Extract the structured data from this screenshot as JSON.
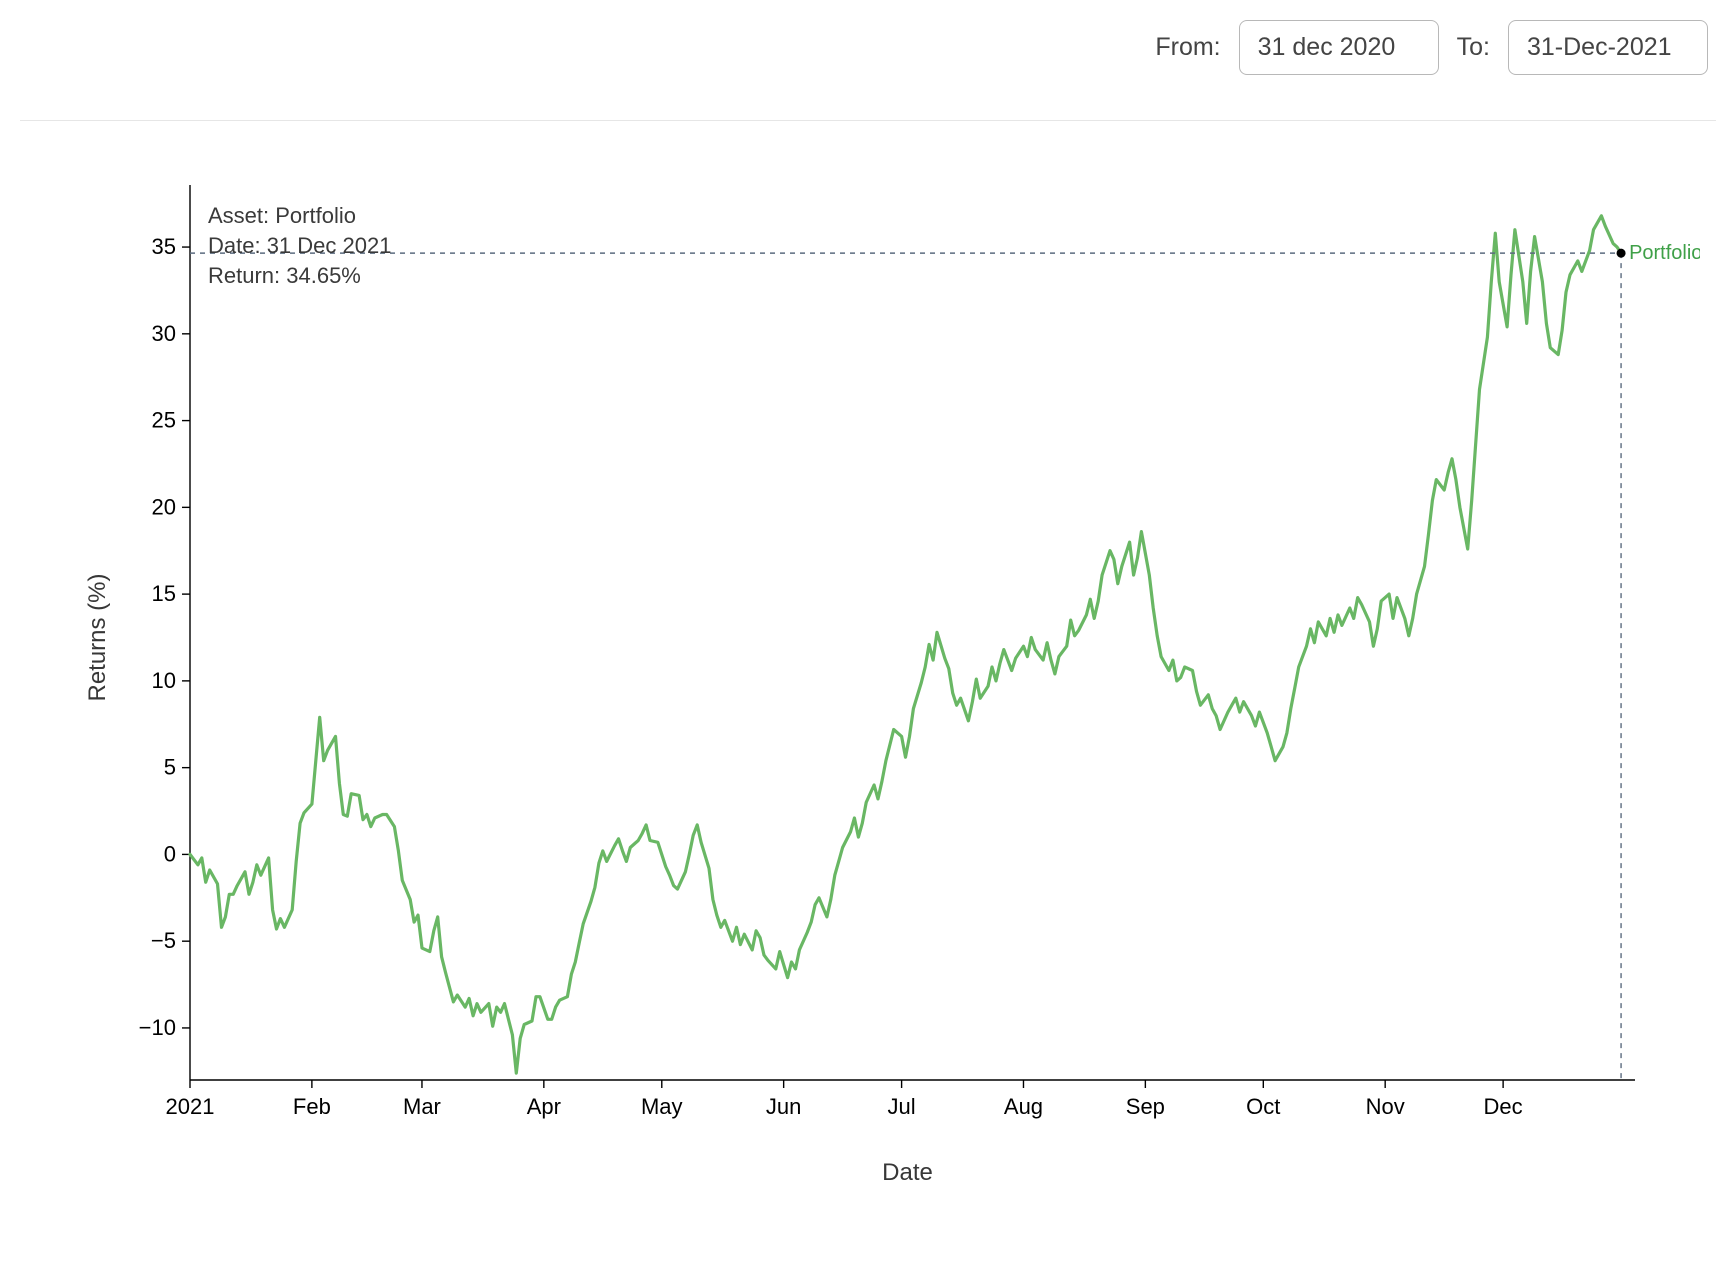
{
  "toolbar": {
    "from_label": "From:",
    "from_value": "31 dec 2020",
    "to_label": "To:",
    "to_value": "31-Dec-2021"
  },
  "tooltip": {
    "asset_line": "Asset: Portfolio",
    "date_line": "Date: 31 Dec 2021",
    "return_line": "Return: 34.65%"
  },
  "chart": {
    "type": "line",
    "x_axis_label": "Date",
    "y_axis_label": "Returns (%)",
    "series_label": "Portfolio",
    "line_color": "#69b764",
    "line_width": 3.2,
    "series_label_color": "#3fa048",
    "axis_color": "#000000",
    "tick_color": "#000000",
    "tick_fontsize": 22,
    "axis_label_fontsize": 24,
    "axis_label_color": "#373737",
    "tooltip_fontsize": 22,
    "tooltip_color": "#3a3a3a",
    "crosshair_color": "#5b6b7f",
    "crosshair_dash": "5,5",
    "marker_fill": "#000000",
    "marker_radius": 4.5,
    "background_color": "#ffffff",
    "x_range": [
      0,
      365
    ],
    "y_range": [
      -13,
      38
    ],
    "y_ticks": [
      -10,
      -5,
      0,
      5,
      10,
      15,
      20,
      25,
      30,
      35
    ],
    "x_ticks": [
      {
        "pos": 0,
        "label": "2021"
      },
      {
        "pos": 31,
        "label": "Feb"
      },
      {
        "pos": 59,
        "label": "Mar"
      },
      {
        "pos": 90,
        "label": "Apr"
      },
      {
        "pos": 120,
        "label": "May"
      },
      {
        "pos": 151,
        "label": "Jun"
      },
      {
        "pos": 181,
        "label": "Jul"
      },
      {
        "pos": 212,
        "label": "Aug"
      },
      {
        "pos": 243,
        "label": "Sep"
      },
      {
        "pos": 273,
        "label": "Oct"
      },
      {
        "pos": 304,
        "label": "Nov"
      },
      {
        "pos": 334,
        "label": "Dec"
      }
    ],
    "cursor_x": 364,
    "cursor_y": 34.65,
    "series": [
      [
        0,
        0
      ],
      [
        2,
        -0.6
      ],
      [
        3,
        -0.2
      ],
      [
        4,
        -1.6
      ],
      [
        5,
        -0.9
      ],
      [
        7,
        -1.7
      ],
      [
        8,
        -4.2
      ],
      [
        9,
        -3.6
      ],
      [
        10,
        -2.3
      ],
      [
        11,
        -2.3
      ],
      [
        12,
        -1.8
      ],
      [
        14,
        -1.0
      ],
      [
        15,
        -2.3
      ],
      [
        16,
        -1.6
      ],
      [
        17,
        -0.6
      ],
      [
        18,
        -1.2
      ],
      [
        20,
        -0.2
      ],
      [
        21,
        -3.2
      ],
      [
        22,
        -4.3
      ],
      [
        23,
        -3.7
      ],
      [
        24,
        -4.2
      ],
      [
        26,
        -3.2
      ],
      [
        27,
        -0.4
      ],
      [
        28,
        1.8
      ],
      [
        29,
        2.4
      ],
      [
        31,
        2.9
      ],
      [
        32,
        5.4
      ],
      [
        33,
        7.9
      ],
      [
        34,
        5.4
      ],
      [
        35,
        6.0
      ],
      [
        37,
        6.8
      ],
      [
        38,
        4.1
      ],
      [
        39,
        2.3
      ],
      [
        40,
        2.2
      ],
      [
        41,
        3.5
      ],
      [
        43,
        3.4
      ],
      [
        44,
        2.0
      ],
      [
        45,
        2.3
      ],
      [
        46,
        1.6
      ],
      [
        47,
        2.1
      ],
      [
        49,
        2.3
      ],
      [
        50,
        2.3
      ],
      [
        52,
        1.6
      ],
      [
        53,
        0.2
      ],
      [
        54,
        -1.5
      ],
      [
        56,
        -2.6
      ],
      [
        57,
        -3.9
      ],
      [
        58,
        -3.5
      ],
      [
        59,
        -5.4
      ],
      [
        61,
        -5.6
      ],
      [
        62,
        -4.4
      ],
      [
        63,
        -3.6
      ],
      [
        64,
        -5.9
      ],
      [
        65,
        -6.8
      ],
      [
        67,
        -8.5
      ],
      [
        68,
        -8.1
      ],
      [
        70,
        -8.8
      ],
      [
        71,
        -8.3
      ],
      [
        72,
        -9.3
      ],
      [
        73,
        -8.6
      ],
      [
        74,
        -9.1
      ],
      [
        76,
        -8.6
      ],
      [
        77,
        -9.9
      ],
      [
        78,
        -8.8
      ],
      [
        79,
        -9.1
      ],
      [
        80,
        -8.6
      ],
      [
        82,
        -10.4
      ],
      [
        83,
        -12.6
      ],
      [
        84,
        -10.6
      ],
      [
        85,
        -9.8
      ],
      [
        87,
        -9.6
      ],
      [
        88,
        -8.2
      ],
      [
        89,
        -8.2
      ],
      [
        91,
        -9.5
      ],
      [
        92,
        -9.5
      ],
      [
        93,
        -8.8
      ],
      [
        94,
        -8.4
      ],
      [
        96,
        -8.2
      ],
      [
        97,
        -6.9
      ],
      [
        98,
        -6.2
      ],
      [
        99,
        -5.1
      ],
      [
        100,
        -4.0
      ],
      [
        102,
        -2.7
      ],
      [
        103,
        -1.9
      ],
      [
        104,
        -0.5
      ],
      [
        105,
        0.2
      ],
      [
        106,
        -0.4
      ],
      [
        108,
        0.5
      ],
      [
        109,
        0.9
      ],
      [
        110,
        0.2
      ],
      [
        111,
        -0.4
      ],
      [
        112,
        0.4
      ],
      [
        114,
        0.8
      ],
      [
        115,
        1.2
      ],
      [
        116,
        1.7
      ],
      [
        117,
        0.8
      ],
      [
        119,
        0.7
      ],
      [
        121,
        -0.7
      ],
      [
        122,
        -1.2
      ],
      [
        123,
        -1.8
      ],
      [
        124,
        -2.0
      ],
      [
        126,
        -1.0
      ],
      [
        127,
        0.0
      ],
      [
        128,
        1.1
      ],
      [
        129,
        1.7
      ],
      [
        130,
        0.7
      ],
      [
        132,
        -0.8
      ],
      [
        133,
        -2.6
      ],
      [
        134,
        -3.5
      ],
      [
        135,
        -4.2
      ],
      [
        136,
        -3.8
      ],
      [
        138,
        -5.0
      ],
      [
        139,
        -4.2
      ],
      [
        140,
        -5.2
      ],
      [
        141,
        -4.6
      ],
      [
        143,
        -5.5
      ],
      [
        144,
        -4.4
      ],
      [
        145,
        -4.8
      ],
      [
        146,
        -5.8
      ],
      [
        147,
        -6.1
      ],
      [
        149,
        -6.6
      ],
      [
        150,
        -5.6
      ],
      [
        152,
        -7.1
      ],
      [
        153,
        -6.2
      ],
      [
        154,
        -6.6
      ],
      [
        155,
        -5.5
      ],
      [
        157,
        -4.5
      ],
      [
        158,
        -3.9
      ],
      [
        159,
        -2.9
      ],
      [
        160,
        -2.5
      ],
      [
        162,
        -3.6
      ],
      [
        163,
        -2.6
      ],
      [
        164,
        -1.2
      ],
      [
        165,
        -0.4
      ],
      [
        166,
        0.4
      ],
      [
        168,
        1.3
      ],
      [
        169,
        2.1
      ],
      [
        170,
        1.0
      ],
      [
        171,
        1.8
      ],
      [
        172,
        3.0
      ],
      [
        174,
        4.0
      ],
      [
        175,
        3.2
      ],
      [
        176,
        4.2
      ],
      [
        177,
        5.4
      ],
      [
        179,
        7.2
      ],
      [
        181,
        6.8
      ],
      [
        182,
        5.6
      ],
      [
        183,
        6.8
      ],
      [
        184,
        8.4
      ],
      [
        186,
        9.9
      ],
      [
        187,
        10.8
      ],
      [
        188,
        12.1
      ],
      [
        189,
        11.2
      ],
      [
        190,
        12.8
      ],
      [
        192,
        11.3
      ],
      [
        193,
        10.7
      ],
      [
        194,
        9.3
      ],
      [
        195,
        8.6
      ],
      [
        196,
        9.0
      ],
      [
        198,
        7.7
      ],
      [
        199,
        8.8
      ],
      [
        200,
        10.1
      ],
      [
        201,
        9.0
      ],
      [
        203,
        9.7
      ],
      [
        204,
        10.8
      ],
      [
        205,
        10.0
      ],
      [
        206,
        11.0
      ],
      [
        207,
        11.8
      ],
      [
        209,
        10.6
      ],
      [
        210,
        11.3
      ],
      [
        212,
        12.0
      ],
      [
        213,
        11.4
      ],
      [
        214,
        12.5
      ],
      [
        215,
        11.8
      ],
      [
        217,
        11.2
      ],
      [
        218,
        12.2
      ],
      [
        219,
        11.2
      ],
      [
        220,
        10.4
      ],
      [
        221,
        11.4
      ],
      [
        223,
        12.0
      ],
      [
        224,
        13.5
      ],
      [
        225,
        12.6
      ],
      [
        226,
        12.9
      ],
      [
        228,
        13.8
      ],
      [
        229,
        14.7
      ],
      [
        230,
        13.6
      ],
      [
        231,
        14.6
      ],
      [
        232,
        16.1
      ],
      [
        234,
        17.5
      ],
      [
        235,
        17.0
      ],
      [
        236,
        15.6
      ],
      [
        237,
        16.6
      ],
      [
        239,
        18.0
      ],
      [
        240,
        16.1
      ],
      [
        241,
        17.1
      ],
      [
        242,
        18.6
      ],
      [
        244,
        16.1
      ],
      [
        245,
        14.2
      ],
      [
        246,
        12.6
      ],
      [
        247,
        11.4
      ],
      [
        249,
        10.6
      ],
      [
        250,
        11.2
      ],
      [
        251,
        10.0
      ],
      [
        252,
        10.2
      ],
      [
        253,
        10.8
      ],
      [
        255,
        10.6
      ],
      [
        256,
        9.4
      ],
      [
        257,
        8.6
      ],
      [
        259,
        9.2
      ],
      [
        260,
        8.4
      ],
      [
        261,
        8.0
      ],
      [
        262,
        7.2
      ],
      [
        264,
        8.2
      ],
      [
        265,
        8.6
      ],
      [
        266,
        9.0
      ],
      [
        267,
        8.2
      ],
      [
        268,
        8.8
      ],
      [
        270,
        8.0
      ],
      [
        271,
        7.4
      ],
      [
        272,
        8.2
      ],
      [
        274,
        7.0
      ],
      [
        275,
        6.2
      ],
      [
        276,
        5.4
      ],
      [
        278,
        6.2
      ],
      [
        279,
        7.0
      ],
      [
        280,
        8.4
      ],
      [
        281,
        9.6
      ],
      [
        282,
        10.8
      ],
      [
        284,
        12.0
      ],
      [
        285,
        13.0
      ],
      [
        286,
        12.2
      ],
      [
        287,
        13.4
      ],
      [
        289,
        12.6
      ],
      [
        290,
        13.6
      ],
      [
        291,
        12.8
      ],
      [
        292,
        13.8
      ],
      [
        293,
        13.2
      ],
      [
        295,
        14.2
      ],
      [
        296,
        13.6
      ],
      [
        297,
        14.8
      ],
      [
        298,
        14.4
      ],
      [
        300,
        13.4
      ],
      [
        301,
        12.0
      ],
      [
        302,
        13.0
      ],
      [
        303,
        14.6
      ],
      [
        305,
        15.0
      ],
      [
        306,
        13.6
      ],
      [
        307,
        14.8
      ],
      [
        309,
        13.6
      ],
      [
        310,
        12.6
      ],
      [
        311,
        13.6
      ],
      [
        312,
        15.0
      ],
      [
        314,
        16.6
      ],
      [
        315,
        18.4
      ],
      [
        316,
        20.4
      ],
      [
        317,
        21.6
      ],
      [
        319,
        21.0
      ],
      [
        320,
        22.0
      ],
      [
        321,
        22.8
      ],
      [
        322,
        21.6
      ],
      [
        323,
        20.0
      ],
      [
        325,
        17.6
      ],
      [
        326,
        20.4
      ],
      [
        327,
        23.6
      ],
      [
        328,
        26.8
      ],
      [
        330,
        29.8
      ],
      [
        331,
        33.0
      ],
      [
        332,
        35.8
      ],
      [
        333,
        33.0
      ],
      [
        335,
        30.4
      ],
      [
        336,
        33.4
      ],
      [
        337,
        36.0
      ],
      [
        339,
        33.0
      ],
      [
        340,
        30.6
      ],
      [
        341,
        33.6
      ],
      [
        342,
        35.6
      ],
      [
        344,
        33.0
      ],
      [
        345,
        30.6
      ],
      [
        346,
        29.2
      ],
      [
        348,
        28.8
      ],
      [
        349,
        30.2
      ],
      [
        350,
        32.4
      ],
      [
        351,
        33.4
      ],
      [
        353,
        34.2
      ],
      [
        354,
        33.6
      ],
      [
        356,
        34.8
      ],
      [
        357,
        36.0
      ],
      [
        359,
        36.8
      ],
      [
        360,
        36.2
      ],
      [
        362,
        35.2
      ],
      [
        363,
        35.0
      ],
      [
        364,
        34.65
      ]
    ]
  }
}
